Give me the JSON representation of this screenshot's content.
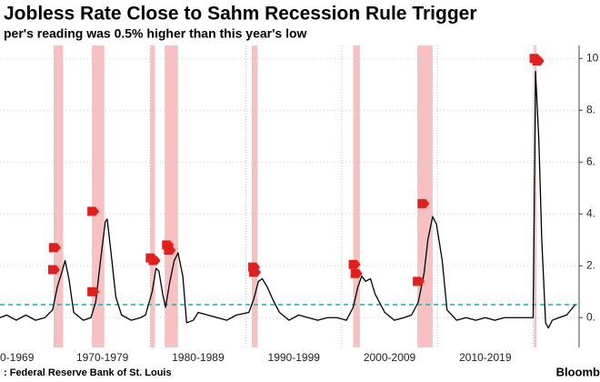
{
  "chart_data": {
    "type": "line",
    "title": "Jobless Rate Close to Sahm Recession Rule Trigger",
    "subtitle": "per's reading was 0.5% higher than this year's low",
    "source": ": Federal Reserve Bank of St. Louis",
    "brand": "Bloomb",
    "x": [
      1964.3,
      1965,
      1966,
      1967,
      1968,
      1969,
      1969.8,
      1970.3,
      1970.8,
      1971.1,
      1971.5,
      1972,
      1973,
      1973.8,
      1974.3,
      1974.8,
      1975.3,
      1975.5,
      1975.9,
      1976.4,
      1977,
      1978,
      1979,
      1979.5,
      1980.2,
      1980.6,
      1980.9,
      1981.3,
      1981.6,
      1982.0,
      1982.5,
      1982.9,
      1983.4,
      1983.8,
      1984.5,
      1985,
      1986,
      1987,
      1988,
      1989,
      1990.3,
      1990.8,
      1991.3,
      1991.7,
      1992.2,
      1992.8,
      1993.5,
      1994.5,
      1995.5,
      1996.5,
      1997.5,
      1998.5,
      1999.5,
      2000.5,
      2001.2,
      2001.7,
      2002.1,
      2002.5,
      2003,
      2003.5,
      2004.5,
      2005.5,
      2006.5,
      2007.3,
      2008.0,
      2008.6,
      2009.0,
      2009.5,
      2009.9,
      2010.5,
      2011,
      2012,
      2013,
      2014,
      2015,
      2016,
      2017,
      2018,
      2019,
      2020.0,
      2020.25,
      2020.6,
      2020.9,
      2021.3,
      2021.6,
      2022,
      2022.7,
      2023.5,
      2024.4
    ],
    "series": [
      {
        "color": "#000000",
        "values": [
          0.0,
          0.1,
          -0.1,
          0.1,
          -0.1,
          0.0,
          0.3,
          1.2,
          1.8,
          2.2,
          1.5,
          0.2,
          -0.1,
          0.0,
          0.6,
          2.2,
          3.7,
          3.8,
          2.5,
          0.8,
          0.1,
          -0.1,
          0.0,
          0.1,
          1.0,
          1.9,
          1.8,
          0.9,
          0.4,
          1.3,
          2.2,
          2.5,
          1.6,
          -0.2,
          -0.1,
          0.2,
          0.1,
          0.0,
          -0.1,
          0.1,
          0.2,
          0.7,
          1.4,
          1.5,
          1.2,
          0.7,
          0.2,
          -0.1,
          0.1,
          0.0,
          -0.1,
          0.0,
          0.0,
          -0.1,
          0.4,
          1.2,
          1.6,
          1.4,
          1.5,
          0.9,
          0.2,
          -0.1,
          0.0,
          0.1,
          0.6,
          1.7,
          3.0,
          3.9,
          3.6,
          2.2,
          0.3,
          -0.1,
          0.0,
          -0.1,
          0.0,
          -0.1,
          0.0,
          0.0,
          0.0,
          0.0,
          9.5,
          6.8,
          3.0,
          -0.2,
          -0.4,
          -0.1,
          0.0,
          0.1,
          0.5
        ]
      }
    ],
    "threshold": {
      "value": 0.5,
      "color": "#2bb5b8"
    },
    "recessions": [
      [
        1969.9,
        1970.9
      ],
      [
        1973.9,
        1975.2
      ],
      [
        1980.0,
        1980.5
      ],
      [
        1981.5,
        1982.9
      ],
      [
        1990.6,
        1991.2
      ],
      [
        2001.2,
        2001.9
      ],
      [
        2007.9,
        2009.5
      ],
      [
        2020.1,
        2020.35
      ]
    ],
    "recession_color": "#f7b6b6",
    "triggers": {
      "color": "#e0201c",
      "x": [
        1969.9,
        1970.0,
        1974.0,
        1974.0,
        1980.1,
        1980.4,
        1981.8,
        1982.0,
        1990.8,
        1990.9,
        2001.3,
        2001.5,
        2008.0,
        2008.5,
        2020.2,
        2020.5
      ],
      "y": [
        1.85,
        2.7,
        1.0,
        4.1,
        2.3,
        2.2,
        2.8,
        2.6,
        1.95,
        1.75,
        2.05,
        1.7,
        1.4,
        4.4,
        10.0,
        9.9
      ]
    },
    "decade_boundaries": [
      1970,
      1980,
      1990,
      2000,
      2010,
      2020
    ],
    "xticks": [
      {
        "value": 1965,
        "label": "0-1969"
      },
      {
        "value": 1975,
        "label": "1970-1979"
      },
      {
        "value": 1985,
        "label": "1980-1989"
      },
      {
        "value": 1995,
        "label": "1990-1999"
      },
      {
        "value": 2005,
        "label": "2000-2009"
      },
      {
        "value": 2015,
        "label": "2010-2019"
      }
    ],
    "xlim": [
      1964.3,
      2024.8
    ],
    "ylim": [
      -1.15,
      10.5
    ],
    "yticks": [
      {
        "value": 0,
        "label": "0."
      },
      {
        "value": 2,
        "label": "2."
      },
      {
        "value": 4,
        "label": "4."
      },
      {
        "value": 6,
        "label": "6."
      },
      {
        "value": 8,
        "label": "8."
      },
      10
    ],
    "grid": true
  }
}
